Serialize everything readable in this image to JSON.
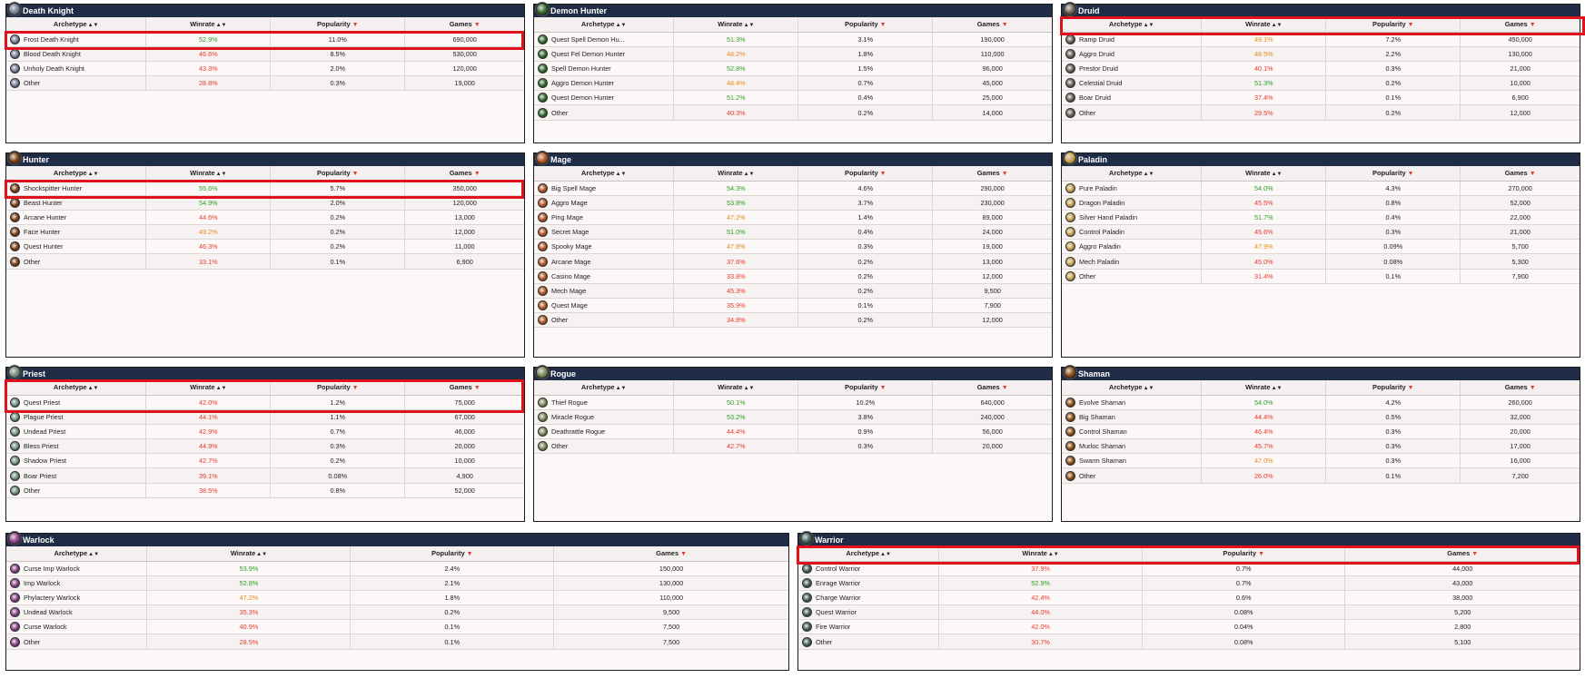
{
  "headers": {
    "archetype": "Archetype",
    "winrate": "Winrate",
    "popularity": "Popularity",
    "games": "Games"
  },
  "sort_icons": {
    "both": "▲▼",
    "down": "▼"
  },
  "colors": {
    "header_bg": "#1e2c46",
    "good": "#2e9d21",
    "mid": "#e68a1a",
    "bad": "#e83a2f",
    "highlight": "#e1111b"
  },
  "panels": {
    "death_knight": {
      "title": "Death Knight",
      "icon": "death-knight-class-icon",
      "icon_color": "#6f7c92",
      "rows": [
        {
          "name": "Frost Death Knight",
          "winrate": "52.9%",
          "popularity": "11.0%",
          "games": "690,000",
          "tier": "good"
        },
        {
          "name": "Blood Death Knight",
          "winrate": "46.6%",
          "popularity": "8.5%",
          "games": "530,000",
          "tier": "bad"
        },
        {
          "name": "Unholy Death Knight",
          "winrate": "43.3%",
          "popularity": "2.0%",
          "games": "120,000",
          "tier": "bad"
        },
        {
          "name": "Other",
          "winrate": "28.8%",
          "popularity": "0.3%",
          "games": "19,000",
          "tier": "bad"
        }
      ]
    },
    "demon_hunter": {
      "title": "Demon Hunter",
      "icon": "demon-hunter-class-icon",
      "icon_color": "#2f6b2a",
      "rows": [
        {
          "name": "Quest Spell Demon Hu...",
          "winrate": "51.3%",
          "popularity": "3.1%",
          "games": "190,000",
          "tier": "good"
        },
        {
          "name": "Quest Fel Demon Hunter",
          "winrate": "48.2%",
          "popularity": "1.8%",
          "games": "110,000",
          "tier": "mid"
        },
        {
          "name": "Spell Demon Hunter",
          "winrate": "52.8%",
          "popularity": "1.5%",
          "games": "96,000",
          "tier": "good"
        },
        {
          "name": "Aggro Demon Hunter",
          "winrate": "48.4%",
          "popularity": "0.7%",
          "games": "45,000",
          "tier": "mid"
        },
        {
          "name": "Quest Demon Hunter",
          "winrate": "51.2%",
          "popularity": "0.4%",
          "games": "25,000",
          "tier": "good"
        },
        {
          "name": "Other",
          "winrate": "40.3%",
          "popularity": "0.2%",
          "games": "14,000",
          "tier": "bad"
        }
      ]
    },
    "druid": {
      "title": "Druid",
      "icon": "druid-class-icon",
      "icon_color": "#6e5e55",
      "rows": [
        {
          "name": "Ramp Druid",
          "winrate": "49.1%",
          "popularity": "7.2%",
          "games": "450,000",
          "tier": "mid"
        },
        {
          "name": "Aggro Druid",
          "winrate": "48.5%",
          "popularity": "2.2%",
          "games": "130,000",
          "tier": "mid"
        },
        {
          "name": "Prestor Druid",
          "winrate": "40.1%",
          "popularity": "0.3%",
          "games": "21,000",
          "tier": "bad"
        },
        {
          "name": "Celestial Druid",
          "winrate": "51.3%",
          "popularity": "0.2%",
          "games": "10,000",
          "tier": "good"
        },
        {
          "name": "Boar Druid",
          "winrate": "37.4%",
          "popularity": "0.1%",
          "games": "6,900",
          "tier": "bad"
        },
        {
          "name": "Other",
          "winrate": "29.5%",
          "popularity": "0.2%",
          "games": "12,000",
          "tier": "bad"
        }
      ]
    },
    "hunter": {
      "title": "Hunter",
      "icon": "hunter-class-icon",
      "icon_color": "#7a3c12",
      "rows": [
        {
          "name": "Shockspitter Hunter",
          "winrate": "55.6%",
          "popularity": "5.7%",
          "games": "350,000",
          "tier": "good"
        },
        {
          "name": "Beast Hunter",
          "winrate": "54.9%",
          "popularity": "2.0%",
          "games": "120,000",
          "tier": "good"
        },
        {
          "name": "Arcane Hunter",
          "winrate": "44.6%",
          "popularity": "0.2%",
          "games": "13,000",
          "tier": "bad"
        },
        {
          "name": "Face Hunter",
          "winrate": "49.2%",
          "popularity": "0.2%",
          "games": "12,000",
          "tier": "mid"
        },
        {
          "name": "Quest Hunter",
          "winrate": "46.3%",
          "popularity": "0.2%",
          "games": "11,000",
          "tier": "bad"
        },
        {
          "name": "Other",
          "winrate": "33.1%",
          "popularity": "0.1%",
          "games": "6,900",
          "tier": "bad"
        }
      ]
    },
    "mage": {
      "title": "Mage",
      "icon": "mage-class-icon",
      "icon_color": "#b8551f",
      "rows": [
        {
          "name": "Big Spell Mage",
          "winrate": "54.3%",
          "popularity": "4.6%",
          "games": "290,000",
          "tier": "good"
        },
        {
          "name": "Aggro Mage",
          "winrate": "53.8%",
          "popularity": "3.7%",
          "games": "230,000",
          "tier": "good"
        },
        {
          "name": "Ping Mage",
          "winrate": "47.2%",
          "popularity": "1.4%",
          "games": "89,000",
          "tier": "mid"
        },
        {
          "name": "Secret Mage",
          "winrate": "51.0%",
          "popularity": "0.4%",
          "games": "24,000",
          "tier": "good"
        },
        {
          "name": "Spooky Mage",
          "winrate": "47.8%",
          "popularity": "0.3%",
          "games": "19,000",
          "tier": "mid"
        },
        {
          "name": "Arcane Mage",
          "winrate": "37.6%",
          "popularity": "0.2%",
          "games": "13,000",
          "tier": "bad"
        },
        {
          "name": "Casino Mage",
          "winrate": "33.8%",
          "popularity": "0.2%",
          "games": "12,000",
          "tier": "bad"
        },
        {
          "name": "Mech Mage",
          "winrate": "45.3%",
          "popularity": "0.2%",
          "games": "9,500",
          "tier": "bad"
        },
        {
          "name": "Quest Mage",
          "winrate": "35.9%",
          "popularity": "0.1%",
          "games": "7,900",
          "tier": "bad"
        },
        {
          "name": "Other",
          "winrate": "34.8%",
          "popularity": "0.2%",
          "games": "12,000",
          "tier": "bad"
        }
      ]
    },
    "paladin": {
      "title": "Paladin",
      "icon": "paladin-class-icon",
      "icon_color": "#c9a24a",
      "rows": [
        {
          "name": "Pure Paladin",
          "winrate": "54.0%",
          "popularity": "4.3%",
          "games": "270,000",
          "tier": "good"
        },
        {
          "name": "Dragon Paladin",
          "winrate": "45.5%",
          "popularity": "0.8%",
          "games": "52,000",
          "tier": "bad"
        },
        {
          "name": "Silver Hand Paladin",
          "winrate": "51.7%",
          "popularity": "0.4%",
          "games": "22,000",
          "tier": "good"
        },
        {
          "name": "Control Paladin",
          "winrate": "45.6%",
          "popularity": "0.3%",
          "games": "21,000",
          "tier": "bad"
        },
        {
          "name": "Aggro Paladin",
          "winrate": "47.9%",
          "popularity": "0.09%",
          "games": "5,700",
          "tier": "mid"
        },
        {
          "name": "Mech Paladin",
          "winrate": "45.0%",
          "popularity": "0.08%",
          "games": "5,300",
          "tier": "bad"
        },
        {
          "name": "Other",
          "winrate": "31.4%",
          "popularity": "0.1%",
          "games": "7,900",
          "tier": "bad"
        }
      ]
    },
    "priest": {
      "title": "Priest",
      "icon": "priest-class-icon",
      "icon_color": "#6e8c7a",
      "rows": [
        {
          "name": "Quest Priest",
          "winrate": "42.0%",
          "popularity": "1.2%",
          "games": "75,000",
          "tier": "bad"
        },
        {
          "name": "Plague Priest",
          "winrate": "44.1%",
          "popularity": "1.1%",
          "games": "67,000",
          "tier": "bad"
        },
        {
          "name": "Undead Priest",
          "winrate": "42.9%",
          "popularity": "0.7%",
          "games": "46,000",
          "tier": "bad"
        },
        {
          "name": "Bless Priest",
          "winrate": "44.9%",
          "popularity": "0.3%",
          "games": "20,000",
          "tier": "bad"
        },
        {
          "name": "Shadow Priest",
          "winrate": "42.7%",
          "popularity": "0.2%",
          "games": "10,000",
          "tier": "bad"
        },
        {
          "name": "Boar Priest",
          "winrate": "39.1%",
          "popularity": "0.08%",
          "games": "4,900",
          "tier": "bad"
        },
        {
          "name": "Other",
          "winrate": "38.5%",
          "popularity": "0.8%",
          "games": "52,000",
          "tier": "bad"
        }
      ]
    },
    "rogue": {
      "title": "Rogue",
      "icon": "rogue-class-icon",
      "icon_color": "#7d8a5a",
      "rows": [
        {
          "name": "Thief Rogue",
          "winrate": "50.1%",
          "popularity": "10.2%",
          "games": "640,000",
          "tier": "good"
        },
        {
          "name": "Miracle Rogue",
          "winrate": "53.2%",
          "popularity": "3.8%",
          "games": "240,000",
          "tier": "good"
        },
        {
          "name": "Deathrattle Rogue",
          "winrate": "44.4%",
          "popularity": "0.9%",
          "games": "56,000",
          "tier": "bad"
        },
        {
          "name": "Other",
          "winrate": "42.7%",
          "popularity": "0.3%",
          "games": "20,000",
          "tier": "bad"
        }
      ]
    },
    "shaman": {
      "title": "Shaman",
      "icon": "shaman-class-icon",
      "icon_color": "#8a4a14",
      "rows": [
        {
          "name": "Evolve Shaman",
          "winrate": "54.0%",
          "popularity": "4.2%",
          "games": "260,000",
          "tier": "good"
        },
        {
          "name": "Big Shaman",
          "winrate": "44.4%",
          "popularity": "0.5%",
          "games": "32,000",
          "tier": "bad"
        },
        {
          "name": "Control Shaman",
          "winrate": "46.4%",
          "popularity": "0.3%",
          "games": "20,000",
          "tier": "bad"
        },
        {
          "name": "Murloc Shaman",
          "winrate": "45.7%",
          "popularity": "0.3%",
          "games": "17,000",
          "tier": "bad"
        },
        {
          "name": "Swarm Shaman",
          "winrate": "47.0%",
          "popularity": "0.3%",
          "games": "16,000",
          "tier": "mid"
        },
        {
          "name": "Other",
          "winrate": "26.0%",
          "popularity": "0.1%",
          "games": "7,200",
          "tier": "bad"
        }
      ]
    },
    "warlock": {
      "title": "Warlock",
      "icon": "warlock-class-icon",
      "icon_color": "#8a3d8a",
      "rows": [
        {
          "name": "Curse Imp Warlock",
          "winrate": "53.9%",
          "popularity": "2.4%",
          "games": "150,000",
          "tier": "good"
        },
        {
          "name": "Imp Warlock",
          "winrate": "52.8%",
          "popularity": "2.1%",
          "games": "130,000",
          "tier": "good"
        },
        {
          "name": "Phylactery Warlock",
          "winrate": "47.2%",
          "popularity": "1.8%",
          "games": "110,000",
          "tier": "mid"
        },
        {
          "name": "Undead Warlock",
          "winrate": "35.3%",
          "popularity": "0.2%",
          "games": "9,500",
          "tier": "bad"
        },
        {
          "name": "Curse Warlock",
          "winrate": "40.9%",
          "popularity": "0.1%",
          "games": "7,500",
          "tier": "bad"
        },
        {
          "name": "Other",
          "winrate": "28.5%",
          "popularity": "0.1%",
          "games": "7,500",
          "tier": "bad"
        }
      ]
    },
    "warrior": {
      "title": "Warrior",
      "icon": "warrior-class-icon",
      "icon_color": "#3f5f5a",
      "rows": [
        {
          "name": "Control Warrior",
          "winrate": "37.9%",
          "popularity": "0.7%",
          "games": "44,000",
          "tier": "bad"
        },
        {
          "name": "Enrage Warrior",
          "winrate": "52.9%",
          "popularity": "0.7%",
          "games": "43,000",
          "tier": "good"
        },
        {
          "name": "Charge Warrior",
          "winrate": "42.4%",
          "popularity": "0.6%",
          "games": "38,000",
          "tier": "bad"
        },
        {
          "name": "Quest Warrior",
          "winrate": "44.0%",
          "popularity": "0.08%",
          "games": "5,200",
          "tier": "bad"
        },
        {
          "name": "Fire Warrior",
          "winrate": "42.0%",
          "popularity": "0.04%",
          "games": "2,800",
          "tier": "bad"
        },
        {
          "name": "Other",
          "winrate": "30.7%",
          "popularity": "0.08%",
          "games": "5,100",
          "tier": "bad"
        }
      ]
    }
  }
}
